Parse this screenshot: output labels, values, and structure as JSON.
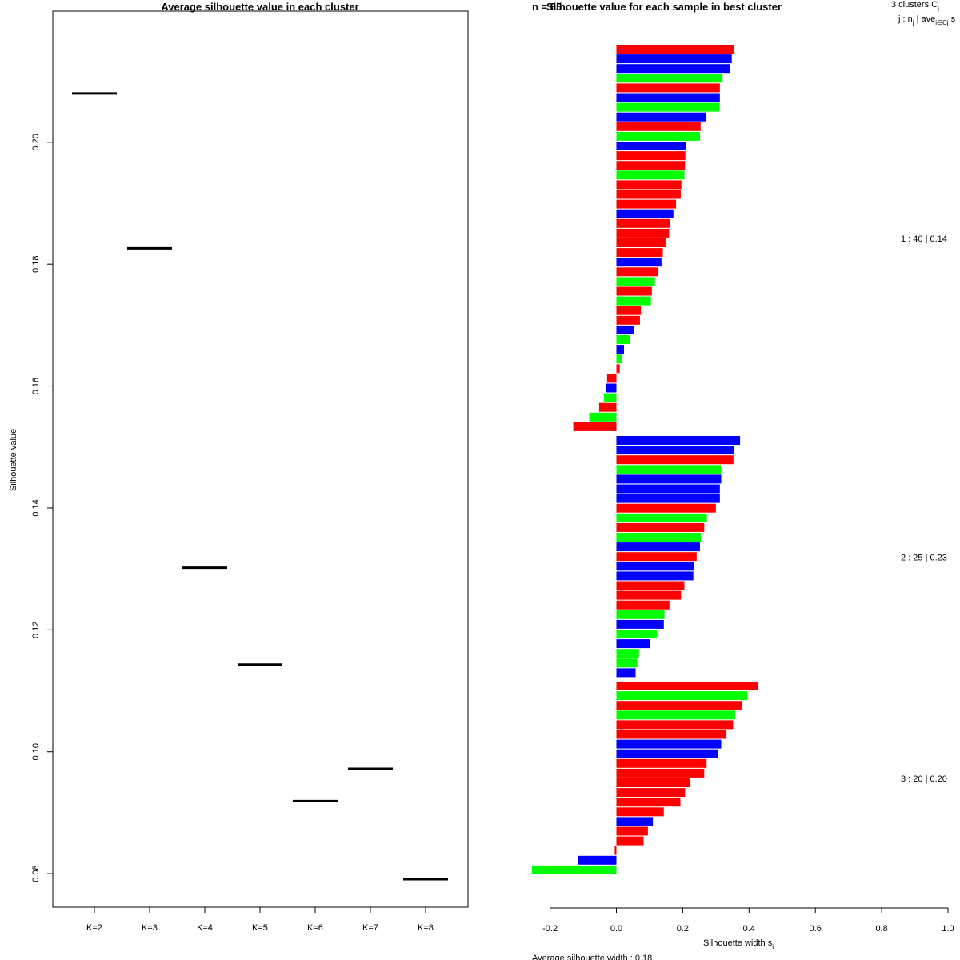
{
  "chart_data": [
    {
      "type": "scatter",
      "title": "Average silhouette value in each cluster",
      "xlabel": "",
      "ylabel": "Silhouette value",
      "categories": [
        "K=2",
        "K=3",
        "K=4",
        "K=5",
        "K=6",
        "K=7",
        "K=8"
      ],
      "values": [
        0.208,
        0.1826,
        0.1302,
        0.1143,
        0.0919,
        0.0972,
        0.0791
      ],
      "ylim": [
        0.0745,
        0.2215
      ],
      "yticks": [
        0.08,
        0.1,
        0.12,
        0.14,
        0.16,
        0.18,
        0.2
      ],
      "ytick_labels": [
        "0.08",
        "0.10",
        "0.12",
        "0.14",
        "0.16",
        "0.18",
        "0.20"
      ]
    },
    {
      "type": "bar",
      "orientation": "horizontal",
      "title": "Silhouette value for each sample in best cluster",
      "title_overlap_fragment": "n = 85",
      "xlabel": "Silhouette width s",
      "xlabel_sub": "i",
      "xlim": [
        -0.25,
        1.0
      ],
      "xticks": [
        -0.2,
        0.0,
        0.2,
        0.4,
        0.6,
        0.8,
        1.0
      ],
      "xtick_labels": [
        "-0.2",
        "0.0",
        "0.2",
        "0.4",
        "0.6",
        "0.8",
        "1.0"
      ],
      "legend_header_1": "3  clusters  C",
      "legend_header_1_sub": "j",
      "legend_header_2": "j :  n",
      "legend_header_2_sub": "j",
      "legend_header_2_mid": " | ave",
      "legend_header_2_sub2": "i∈Cj",
      "legend_header_2_tail": "  s",
      "footer": "Average silhouette width :  0.18",
      "colors": {
        "R": "#ff0000",
        "B": "#0000ff",
        "G": "#00ff00"
      },
      "clusters": [
        {
          "label": "1 :  40  |  0.14",
          "bars": [
            {
              "v": 0.355,
              "c": "R"
            },
            {
              "v": 0.348,
              "c": "B"
            },
            {
              "v": 0.343,
              "c": "B"
            },
            {
              "v": 0.32,
              "c": "G"
            },
            {
              "v": 0.312,
              "c": "R"
            },
            {
              "v": 0.312,
              "c": "B"
            },
            {
              "v": 0.311,
              "c": "G"
            },
            {
              "v": 0.27,
              "c": "B"
            },
            {
              "v": 0.254,
              "c": "R"
            },
            {
              "v": 0.252,
              "c": "G"
            },
            {
              "v": 0.21,
              "c": "B"
            },
            {
              "v": 0.208,
              "c": "R"
            },
            {
              "v": 0.207,
              "c": "R"
            },
            {
              "v": 0.205,
              "c": "G"
            },
            {
              "v": 0.196,
              "c": "R"
            },
            {
              "v": 0.194,
              "c": "R"
            },
            {
              "v": 0.18,
              "c": "R"
            },
            {
              "v": 0.172,
              "c": "B"
            },
            {
              "v": 0.162,
              "c": "R"
            },
            {
              "v": 0.159,
              "c": "R"
            },
            {
              "v": 0.149,
              "c": "R"
            },
            {
              "v": 0.14,
              "c": "R"
            },
            {
              "v": 0.136,
              "c": "B"
            },
            {
              "v": 0.125,
              "c": "R"
            },
            {
              "v": 0.116,
              "c": "G"
            },
            {
              "v": 0.107,
              "c": "R"
            },
            {
              "v": 0.104,
              "c": "G"
            },
            {
              "v": 0.074,
              "c": "R"
            },
            {
              "v": 0.071,
              "c": "R"
            },
            {
              "v": 0.053,
              "c": "B"
            },
            {
              "v": 0.042,
              "c": "G"
            },
            {
              "v": 0.023,
              "c": "B"
            },
            {
              "v": 0.018,
              "c": "G"
            },
            {
              "v": 0.01,
              "c": "R"
            },
            {
              "v": -0.028,
              "c": "R"
            },
            {
              "v": -0.032,
              "c": "B"
            },
            {
              "v": -0.038,
              "c": "G"
            },
            {
              "v": -0.052,
              "c": "R"
            },
            {
              "v": -0.082,
              "c": "G"
            },
            {
              "v": -0.13,
              "c": "R"
            }
          ]
        },
        {
          "label": "2 :  25  |  0.23",
          "bars": [
            {
              "v": 0.373,
              "c": "B"
            },
            {
              "v": 0.355,
              "c": "B"
            },
            {
              "v": 0.353,
              "c": "R"
            },
            {
              "v": 0.316,
              "c": "G"
            },
            {
              "v": 0.316,
              "c": "B"
            },
            {
              "v": 0.312,
              "c": "B"
            },
            {
              "v": 0.312,
              "c": "B"
            },
            {
              "v": 0.3,
              "c": "R"
            },
            {
              "v": 0.273,
              "c": "G"
            },
            {
              "v": 0.265,
              "c": "R"
            },
            {
              "v": 0.255,
              "c": "G"
            },
            {
              "v": 0.252,
              "c": "B"
            },
            {
              "v": 0.242,
              "c": "R"
            },
            {
              "v": 0.235,
              "c": "B"
            },
            {
              "v": 0.232,
              "c": "B"
            },
            {
              "v": 0.205,
              "c": "R"
            },
            {
              "v": 0.195,
              "c": "R"
            },
            {
              "v": 0.16,
              "c": "R"
            },
            {
              "v": 0.145,
              "c": "G"
            },
            {
              "v": 0.143,
              "c": "B"
            },
            {
              "v": 0.122,
              "c": "G"
            },
            {
              "v": 0.102,
              "c": "B"
            },
            {
              "v": 0.068,
              "c": "G"
            },
            {
              "v": 0.063,
              "c": "G"
            },
            {
              "v": 0.058,
              "c": "B"
            }
          ]
        },
        {
          "label": "3 :  20  |  0.20",
          "bars": [
            {
              "v": 0.427,
              "c": "R"
            },
            {
              "v": 0.395,
              "c": "G"
            },
            {
              "v": 0.38,
              "c": "R"
            },
            {
              "v": 0.358,
              "c": "G"
            },
            {
              "v": 0.352,
              "c": "R"
            },
            {
              "v": 0.332,
              "c": "R"
            },
            {
              "v": 0.316,
              "c": "B"
            },
            {
              "v": 0.307,
              "c": "B"
            },
            {
              "v": 0.272,
              "c": "R"
            },
            {
              "v": 0.265,
              "c": "R"
            },
            {
              "v": 0.222,
              "c": "R"
            },
            {
              "v": 0.207,
              "c": "R"
            },
            {
              "v": 0.193,
              "c": "R"
            },
            {
              "v": 0.143,
              "c": "R"
            },
            {
              "v": 0.11,
              "c": "B"
            },
            {
              "v": 0.095,
              "c": "R"
            },
            {
              "v": 0.082,
              "c": "R"
            },
            {
              "v": -0.005,
              "c": "R"
            },
            {
              "v": -0.115,
              "c": "B"
            },
            {
              "v": -0.255,
              "c": "G"
            }
          ]
        }
      ]
    }
  ]
}
